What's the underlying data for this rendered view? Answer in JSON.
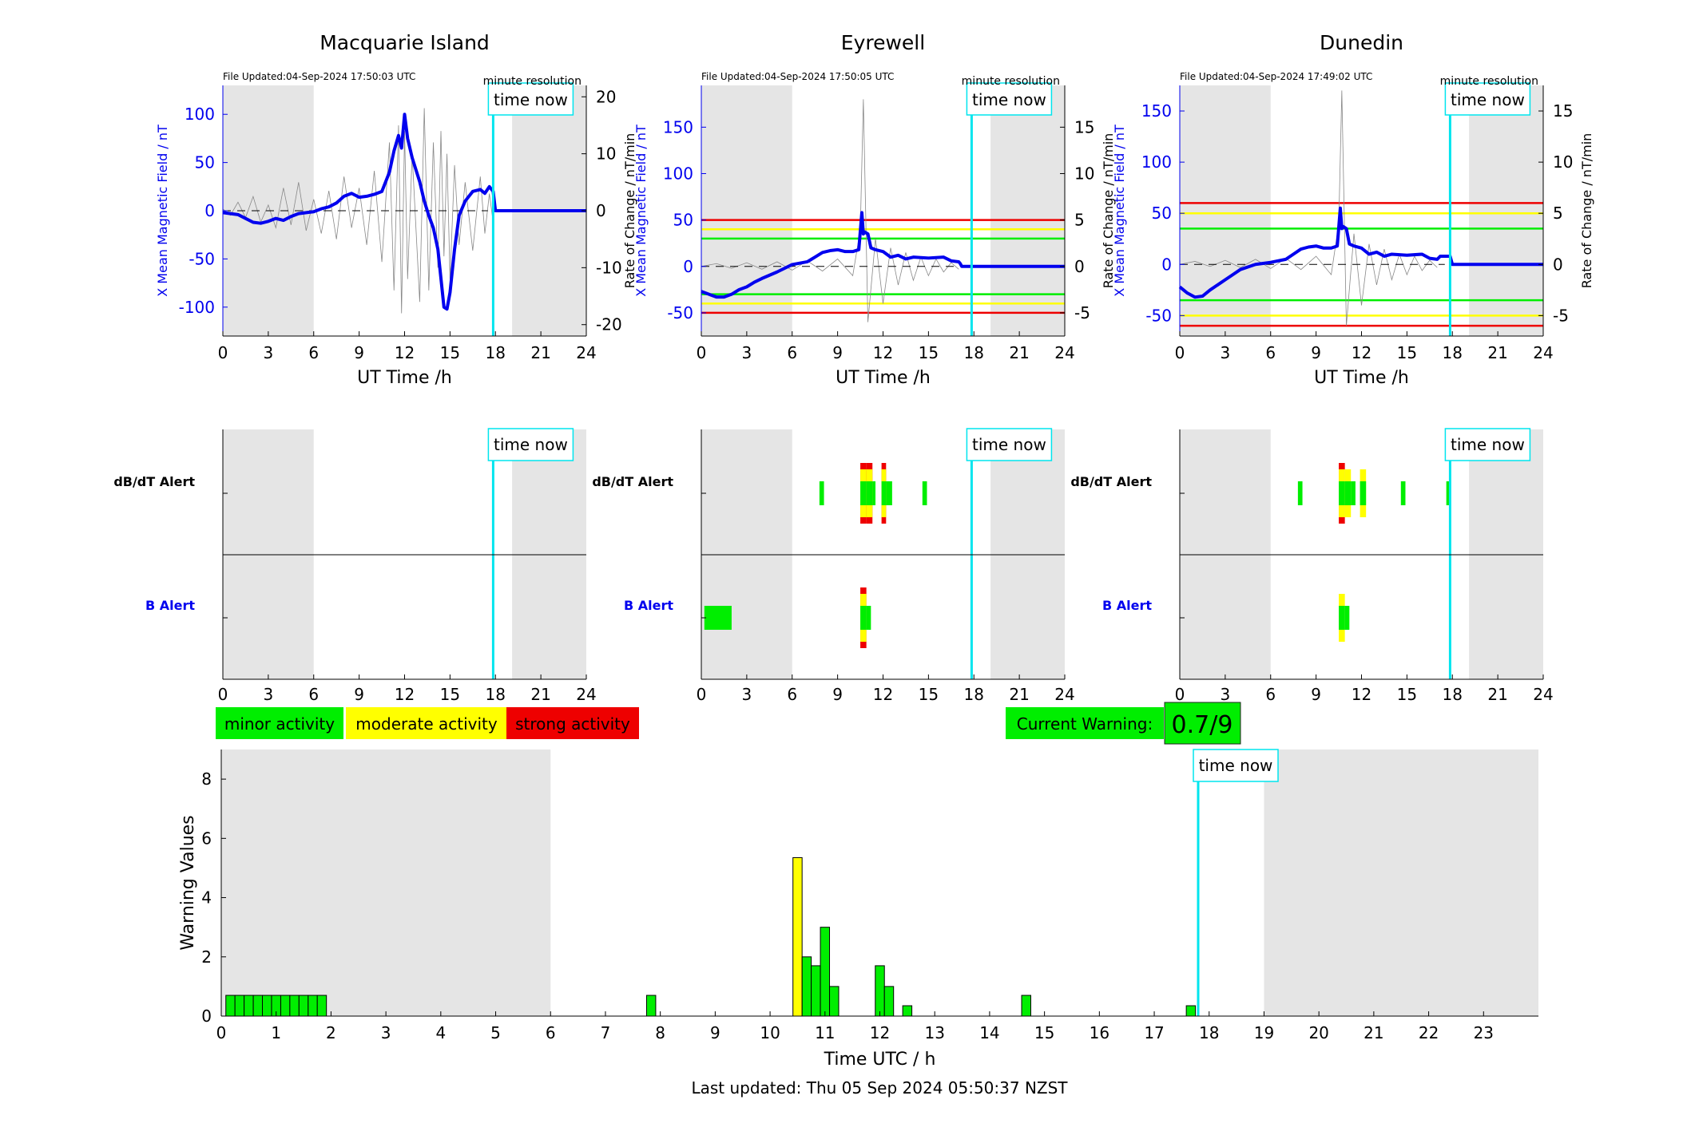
{
  "colors": {
    "shade": "#e5e5e5",
    "blue": "#0000ee",
    "cyan": "#00e5ee",
    "green": "#00ee00",
    "yellow": "#ffff00",
    "red": "#ee0000",
    "black": "#000000"
  },
  "labels": {
    "time_now": "time now",
    "minute_resolution": "minute resolution",
    "dbdt_alert": "dB/dT Alert",
    "b_alert": "B Alert",
    "ut_xlabel": "UT Time /h",
    "left_ylabel": "X Mean Magnetic Field / nT",
    "right_ylabel": "Rate of Change / nT/min",
    "legend": [
      "minor activity",
      "moderate activity",
      "strong activity"
    ],
    "current_warning_label": "Current Warning:",
    "current_warning_value": "0.7/9",
    "last_updated": "Last updated: Thu 05 Sep 2024 05:50:37 NZST"
  },
  "chart_data": [
    {
      "type": "line",
      "station": "Macquarie Island",
      "file_updated": "File Updated:04-Sep-2024 17:50:03 UTC",
      "xlim": [
        0,
        24
      ],
      "xticks": [
        0,
        3,
        6,
        9,
        12,
        15,
        18,
        21,
        24
      ],
      "ylim": [
        -130,
        130
      ],
      "yticks": [
        -100,
        -50,
        0,
        50,
        100
      ],
      "ylim_right": [
        -22,
        22
      ],
      "yticks_right": [
        -20,
        -10,
        0,
        10,
        20
      ],
      "time_now": 17.85,
      "night_shading": [
        [
          0,
          6
        ],
        [
          19.1,
          24
        ]
      ],
      "thresholds": [],
      "mean_field": {
        "x": [
          0,
          0.5,
          1,
          1.5,
          2,
          2.5,
          3,
          3.5,
          4,
          4.5,
          5,
          5.5,
          6,
          6.5,
          7,
          7.5,
          8,
          8.5,
          9,
          9.5,
          10,
          10.5,
          11,
          11.3,
          11.6,
          11.8,
          12,
          12.2,
          12.5,
          13,
          13.3,
          13.6,
          13.9,
          14.2,
          14.4,
          14.6,
          14.8,
          15,
          15.3,
          15.6,
          16,
          16.5,
          17,
          17.3,
          17.6,
          17.85,
          18,
          24
        ],
        "y": [
          -2,
          -3,
          -4,
          -8,
          -12,
          -13,
          -11,
          -8,
          -10,
          -6,
          -3,
          -2,
          -1,
          2,
          4,
          8,
          15,
          18,
          14,
          15,
          17,
          20,
          40,
          62,
          78,
          65,
          100,
          75,
          55,
          30,
          10,
          -5,
          -18,
          -40,
          -70,
          -100,
          -102,
          -85,
          -40,
          -5,
          10,
          20,
          22,
          18,
          25,
          20,
          0,
          0
        ]
      },
      "rate_x": [
        0,
        0.5,
        1,
        1.5,
        2,
        2.5,
        3,
        3.5,
        4,
        4.5,
        5,
        5.5,
        6,
        6.5,
        7,
        7.5,
        8,
        8.5,
        9,
        9.5,
        10,
        10.5,
        11,
        11.3,
        11.6,
        11.8,
        12,
        12.2,
        12.5,
        13,
        13.3,
        13.6,
        13.9,
        14.2,
        14.4,
        14.6,
        14.8,
        15,
        15.3,
        15.6,
        16,
        16.5,
        17,
        17.3,
        17.6,
        17.85
      ],
      "rate_y": [
        0.3,
        -0.8,
        1.5,
        -1.2,
        2.5,
        -2,
        1,
        -3,
        4,
        -2.5,
        5,
        -3.5,
        2,
        -4,
        3.5,
        -5,
        6,
        -3,
        4,
        -6,
        7,
        -9,
        12,
        -14,
        15,
        -18,
        14,
        -12,
        10,
        -16,
        18,
        -14,
        12,
        -10,
        14,
        -8,
        10,
        -12,
        8,
        -6,
        5,
        -7,
        6,
        -4,
        3,
        -2
      ]
    },
    {
      "type": "line",
      "station": "Eyrewell",
      "file_updated": "File Updated:04-Sep-2024 17:50:05 UTC",
      "xlim": [
        0,
        24
      ],
      "xticks": [
        0,
        3,
        6,
        9,
        12,
        15,
        18,
        21,
        24
      ],
      "ylim": [
        -75,
        195
      ],
      "yticks": [
        -50,
        0,
        50,
        100,
        150
      ],
      "ylim_right": [
        -7.5,
        19.5
      ],
      "yticks_right": [
        -5,
        0,
        5,
        10,
        15
      ],
      "time_now": 17.85,
      "night_shading": [
        [
          0,
          6
        ],
        [
          19.1,
          24
        ]
      ],
      "thresholds": [
        {
          "value": 50,
          "color": "red"
        },
        {
          "value": 40,
          "color": "yellow"
        },
        {
          "value": 30,
          "color": "green"
        },
        {
          "value": -30,
          "color": "green"
        },
        {
          "value": -40,
          "color": "yellow"
        },
        {
          "value": -50,
          "color": "red"
        }
      ],
      "mean_field": {
        "x": [
          0,
          0.5,
          1,
          1.5,
          2,
          2.5,
          3,
          3.5,
          4,
          5,
          6,
          7,
          7.5,
          8,
          8.5,
          9,
          9.5,
          10,
          10.4,
          10.6,
          10.7,
          10.8,
          11,
          11.2,
          11.5,
          12,
          12.5,
          13,
          13.5,
          14,
          15,
          16,
          16.5,
          17,
          17.1,
          17.2,
          17.85,
          18,
          24
        ],
        "y": [
          -27,
          -30,
          -33,
          -33,
          -30,
          -25,
          -22,
          -17,
          -13,
          -6,
          2,
          5,
          10,
          15,
          17,
          18,
          16,
          16,
          18,
          58,
          35,
          37,
          35,
          20,
          18,
          16,
          10,
          12,
          8,
          10,
          9,
          10,
          6,
          5,
          3,
          0,
          0,
          0,
          0
        ]
      },
      "rate_x": [
        0,
        1,
        2,
        3,
        4,
        5,
        6,
        7,
        8,
        9,
        10,
        10.5,
        10.7,
        11,
        11.5,
        12,
        12.5,
        13,
        13.5,
        14,
        14.5,
        15,
        15.5,
        16,
        16.5,
        17
      ],
      "rate_y": [
        0,
        0.3,
        -0.2,
        0.4,
        -0.3,
        0.5,
        -0.4,
        0.6,
        -0.5,
        0.8,
        -1,
        4,
        18,
        -6,
        3,
        -4,
        2,
        -2,
        1.5,
        -1.5,
        1,
        -1,
        0.8,
        -0.6,
        0.4,
        -0.3
      ]
    },
    {
      "type": "line",
      "station": "Dunedin",
      "file_updated": "File Updated:04-Sep-2024 17:49:02 UTC",
      "xlim": [
        0,
        24
      ],
      "xticks": [
        0,
        3,
        6,
        9,
        12,
        15,
        18,
        21,
        24
      ],
      "ylim": [
        -70,
        175
      ],
      "yticks": [
        -50,
        0,
        50,
        100,
        150
      ],
      "ylim_right": [
        -7,
        17.5
      ],
      "yticks_right": [
        -5,
        0,
        5,
        10,
        15
      ],
      "time_now": 17.85,
      "night_shading": [
        [
          0,
          6
        ],
        [
          19.1,
          24
        ]
      ],
      "thresholds": [
        {
          "value": 60,
          "color": "red"
        },
        {
          "value": 50,
          "color": "yellow"
        },
        {
          "value": 35,
          "color": "green"
        },
        {
          "value": -35,
          "color": "green"
        },
        {
          "value": -50,
          "color": "yellow"
        },
        {
          "value": -60,
          "color": "red"
        }
      ],
      "mean_field": {
        "x": [
          0,
          0.5,
          1,
          1.5,
          2,
          2.5,
          3,
          3.5,
          4,
          5,
          6,
          7,
          7.5,
          8,
          8.5,
          9,
          9.5,
          10,
          10.4,
          10.6,
          10.7,
          10.8,
          11,
          11.2,
          11.5,
          12,
          12.5,
          13,
          13.5,
          14,
          15,
          16,
          16.5,
          17,
          17.2,
          17.85,
          18,
          24
        ],
        "y": [
          -22,
          -28,
          -32,
          -31,
          -25,
          -20,
          -15,
          -10,
          -5,
          0,
          2,
          5,
          10,
          15,
          17,
          18,
          16,
          16,
          18,
          55,
          35,
          37,
          35,
          20,
          18,
          16,
          10,
          12,
          8,
          10,
          9,
          10,
          6,
          5,
          8,
          8,
          0,
          0
        ]
      },
      "rate_x": [
        0,
        1,
        2,
        3,
        4,
        5,
        6,
        7,
        8,
        9,
        10,
        10.5,
        10.7,
        11,
        11.5,
        12,
        12.5,
        13,
        13.5,
        14,
        14.5,
        15,
        15.5,
        16,
        16.5,
        17
      ],
      "rate_y": [
        0,
        0.3,
        -0.2,
        0.4,
        -0.3,
        0.5,
        -0.4,
        0.6,
        -0.5,
        0.8,
        -1,
        4,
        17,
        -6,
        3,
        -4,
        2,
        -2,
        1.5,
        -1.5,
        1,
        -1,
        0.8,
        -0.6,
        0.4,
        -0.3
      ]
    },
    {
      "type": "heatmap",
      "station": "Macquarie Island",
      "xticks": [
        0,
        3,
        6,
        9,
        12,
        15,
        18,
        21,
        24
      ],
      "dbdt_segments": [],
      "b_segments": []
    },
    {
      "type": "heatmap",
      "station": "Eyrewell",
      "xticks": [
        0,
        3,
        6,
        9,
        12,
        15,
        18,
        21,
        24
      ],
      "dbdt_segments": [
        {
          "x": 7.8,
          "w": 0.3,
          "level": 1
        },
        {
          "x": 10.5,
          "w": 0.4,
          "level": 3
        },
        {
          "x": 10.9,
          "w": 0.4,
          "level": 3
        },
        {
          "x": 11.3,
          "w": 0.2,
          "level": 1
        },
        {
          "x": 11.9,
          "w": 0.3,
          "level": 3
        },
        {
          "x": 12.2,
          "w": 0.4,
          "level": 1
        },
        {
          "x": 14.6,
          "w": 0.3,
          "level": 1
        }
      ],
      "b_segments": [
        {
          "x": 0.2,
          "w": 1.8,
          "level": 1
        },
        {
          "x": 10.5,
          "w": 0.4,
          "level": 3
        },
        {
          "x": 10.9,
          "w": 0.3,
          "level": 1
        }
      ]
    },
    {
      "type": "heatmap",
      "station": "Dunedin",
      "xticks": [
        0,
        3,
        6,
        9,
        12,
        15,
        18,
        21,
        24
      ],
      "dbdt_segments": [
        {
          "x": 7.8,
          "w": 0.3,
          "level": 1
        },
        {
          "x": 10.5,
          "w": 0.4,
          "level": 3
        },
        {
          "x": 10.9,
          "w": 0.4,
          "level": 2
        },
        {
          "x": 11.3,
          "w": 0.3,
          "level": 1
        },
        {
          "x": 11.9,
          "w": 0.4,
          "level": 2
        },
        {
          "x": 14.6,
          "w": 0.3,
          "level": 1
        },
        {
          "x": 17.6,
          "w": 0.2,
          "level": 1
        }
      ],
      "b_segments": [
        {
          "x": 10.5,
          "w": 0.4,
          "level": 2
        },
        {
          "x": 10.9,
          "w": 0.3,
          "level": 1
        }
      ]
    },
    {
      "type": "bar",
      "xlabel": "Time UTC / h",
      "ylabel": "Warning Values",
      "xlim": [
        0,
        24
      ],
      "xticks": [
        0,
        1,
        2,
        3,
        4,
        5,
        6,
        7,
        8,
        9,
        10,
        11,
        12,
        13,
        14,
        15,
        16,
        17,
        18,
        19,
        20,
        21,
        22,
        23
      ],
      "ylim": [
        0,
        9
      ],
      "yticks": [
        0,
        2,
        4,
        6,
        8
      ],
      "time_now": 17.8,
      "night_shading": [
        [
          0,
          6
        ],
        [
          19,
          24
        ]
      ],
      "bin_width": 0.1667,
      "bars": [
        {
          "x": 0.167,
          "v": 0.7,
          "level": 1
        },
        {
          "x": 0.333,
          "v": 0.7,
          "level": 1
        },
        {
          "x": 0.5,
          "v": 0.7,
          "level": 1
        },
        {
          "x": 0.667,
          "v": 0.7,
          "level": 1
        },
        {
          "x": 0.833,
          "v": 0.7,
          "level": 1
        },
        {
          "x": 1.0,
          "v": 0.7,
          "level": 1
        },
        {
          "x": 1.167,
          "v": 0.7,
          "level": 1
        },
        {
          "x": 1.333,
          "v": 0.7,
          "level": 1
        },
        {
          "x": 1.5,
          "v": 0.7,
          "level": 1
        },
        {
          "x": 1.667,
          "v": 0.7,
          "level": 1
        },
        {
          "x": 1.833,
          "v": 0.7,
          "level": 1
        },
        {
          "x": 7.833,
          "v": 0.7,
          "level": 1
        },
        {
          "x": 10.5,
          "v": 5.35,
          "level": 2
        },
        {
          "x": 10.667,
          "v": 2.0,
          "level": 1
        },
        {
          "x": 10.833,
          "v": 1.7,
          "level": 1
        },
        {
          "x": 11.0,
          "v": 3.0,
          "level": 1
        },
        {
          "x": 11.167,
          "v": 1.0,
          "level": 1
        },
        {
          "x": 12.0,
          "v": 1.7,
          "level": 1
        },
        {
          "x": 12.167,
          "v": 1.0,
          "level": 1
        },
        {
          "x": 12.5,
          "v": 0.35,
          "level": 1
        },
        {
          "x": 14.667,
          "v": 0.7,
          "level": 1
        },
        {
          "x": 17.667,
          "v": 0.35,
          "level": 1
        }
      ]
    }
  ]
}
